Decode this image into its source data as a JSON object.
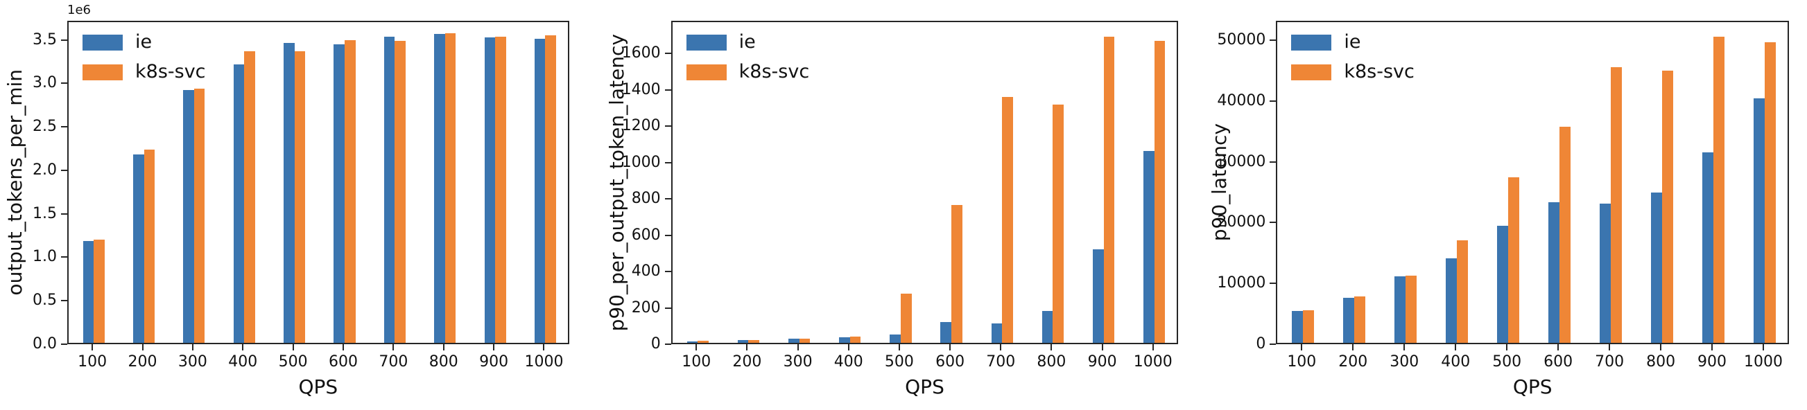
{
  "figure": {
    "background": "#ffffff",
    "axis_color": "#262626",
    "text_color": "#111111"
  },
  "legend": {
    "items": [
      {
        "label": "ie",
        "color": "#3b75af"
      },
      {
        "label": "k8s-svc",
        "color": "#ef8636"
      }
    ]
  },
  "chart_data": [
    {
      "id": "output-tokens-per-min",
      "type": "bar",
      "title": "",
      "xlabel": "QPS",
      "ylabel": "output_tokens_per_min",
      "offset_text": "1e6",
      "grid": false,
      "legend_position": "upper-left",
      "categories": [
        "100",
        "200",
        "300",
        "400",
        "500",
        "600",
        "700",
        "800",
        "900",
        "1000"
      ],
      "series": [
        {
          "name": "ie",
          "color": "#3b75af",
          "values": [
            1170000,
            2170000,
            2910000,
            3200000,
            3450000,
            3430000,
            3520000,
            3550000,
            3510000,
            3500000
          ]
        },
        {
          "name": "k8s-svc",
          "color": "#ef8636",
          "values": [
            1190000,
            2220000,
            2920000,
            3350000,
            3350000,
            3480000,
            3470000,
            3560000,
            3520000,
            3540000
          ]
        }
      ],
      "ylim": [
        0,
        3720000
      ],
      "yticks": [
        {
          "value": 0,
          "label": "0.0"
        },
        {
          "value": 500000,
          "label": "0.5"
        },
        {
          "value": 1000000,
          "label": "1.0"
        },
        {
          "value": 1500000,
          "label": "1.5"
        },
        {
          "value": 2000000,
          "label": "2.0"
        },
        {
          "value": 2500000,
          "label": "2.5"
        },
        {
          "value": 3000000,
          "label": "3.0"
        },
        {
          "value": 3500000,
          "label": "3.5"
        }
      ]
    },
    {
      "id": "p90-per-output-token-latency",
      "type": "bar",
      "title": "",
      "xlabel": "QPS",
      "ylabel": "p90_per_output_token_latency",
      "offset_text": "",
      "grid": false,
      "legend_position": "upper-left",
      "categories": [
        "100",
        "200",
        "300",
        "400",
        "500",
        "600",
        "700",
        "800",
        "900",
        "1000"
      ],
      "series": [
        {
          "name": "ie",
          "color": "#3b75af",
          "values": [
            8,
            15,
            22,
            32,
            47,
            115,
            105,
            175,
            513,
            1057
          ]
        },
        {
          "name": "k8s-svc",
          "color": "#ef8636",
          "values": [
            10,
            17,
            23,
            36,
            270,
            760,
            1355,
            1312,
            1685,
            1660
          ]
        }
      ],
      "ylim": [
        0,
        1780
      ],
      "yticks": [
        {
          "value": 0,
          "label": "0"
        },
        {
          "value": 200,
          "label": "200"
        },
        {
          "value": 400,
          "label": "400"
        },
        {
          "value": 600,
          "label": "600"
        },
        {
          "value": 800,
          "label": "800"
        },
        {
          "value": 1000,
          "label": "1000"
        },
        {
          "value": 1200,
          "label": "1200"
        },
        {
          "value": 1400,
          "label": "1400"
        },
        {
          "value": 1600,
          "label": "1600"
        }
      ]
    },
    {
      "id": "p90-latency",
      "type": "bar",
      "title": "",
      "xlabel": "QPS",
      "ylabel": "p90_latency",
      "offset_text": "",
      "grid": false,
      "legend_position": "upper-left",
      "categories": [
        "100",
        "200",
        "300",
        "400",
        "500",
        "600",
        "700",
        "800",
        "900",
        "1000"
      ],
      "series": [
        {
          "name": "ie",
          "color": "#3b75af",
          "values": [
            5200,
            7400,
            10900,
            13900,
            19200,
            23100,
            22900,
            24700,
            31300,
            40200
          ]
        },
        {
          "name": "k8s-svc",
          "color": "#ef8636",
          "values": [
            5400,
            7600,
            11100,
            16900,
            27200,
            35600,
            45300,
            44800,
            50300,
            49400
          ]
        }
      ],
      "ylim": [
        0,
        53200
      ],
      "yticks": [
        {
          "value": 0,
          "label": "0"
        },
        {
          "value": 10000,
          "label": "10000"
        },
        {
          "value": 20000,
          "label": "20000"
        },
        {
          "value": 30000,
          "label": "30000"
        },
        {
          "value": 40000,
          "label": "40000"
        },
        {
          "value": 50000,
          "label": "50000"
        }
      ]
    }
  ]
}
